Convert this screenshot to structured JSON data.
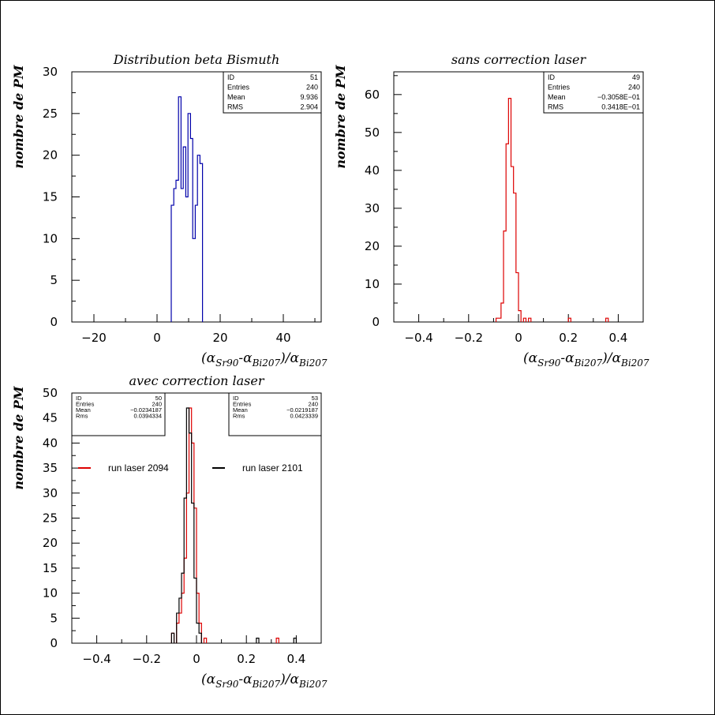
{
  "x_axis_label": {
    "open": "(α",
    "sub1": "Sr90",
    "mid": "-α",
    "sub2": "Bi207",
    "close": ")/α",
    "sub3": "Bi207"
  },
  "chart_data": [
    {
      "id": "bismuth",
      "type": "histogram",
      "title": "Distribution beta Bismuth",
      "ylabel": "nombre de PM",
      "xlim": [
        -27,
        52
      ],
      "ylim": [
        0,
        30
      ],
      "xticks": [
        -20,
        0,
        20,
        40
      ],
      "yticks": [
        0,
        5,
        10,
        15,
        20,
        25,
        30
      ],
      "xtick_labels": [
        "−20",
        "0",
        "20",
        "40"
      ],
      "series": [
        {
          "color": "#0000aa",
          "bins": [
            [
              4.5,
              5.3,
              14
            ],
            [
              5.3,
              6.0,
              16
            ],
            [
              6.0,
              6.8,
              17
            ],
            [
              6.8,
              7.6,
              27
            ],
            [
              7.6,
              8.3,
              16
            ],
            [
              8.3,
              9.1,
              21
            ],
            [
              9.1,
              9.8,
              15
            ],
            [
              9.8,
              10.6,
              25
            ],
            [
              10.6,
              11.3,
              22
            ],
            [
              11.3,
              12.1,
              10
            ],
            [
              12.1,
              12.8,
              14
            ],
            [
              12.8,
              13.6,
              20
            ],
            [
              13.6,
              14.4,
              19
            ]
          ]
        }
      ],
      "stats": [
        {
          "rows": [
            [
              "ID",
              "51"
            ],
            [
              "Entries",
              "240"
            ],
            [
              "Mean",
              "9.936"
            ],
            [
              "RMS",
              "2.904"
            ]
          ]
        }
      ]
    },
    {
      "id": "sans",
      "type": "histogram",
      "title": "sans correction laser",
      "ylabel": "nombre de PM",
      "xlim": [
        -0.5,
        0.5
      ],
      "ylim": [
        0,
        66
      ],
      "xticks": [
        -0.4,
        -0.2,
        0,
        0.2,
        0.4
      ],
      "yticks": [
        0,
        10,
        20,
        30,
        40,
        50,
        60
      ],
      "xtick_labels": [
        "−0.4",
        "−0.2",
        "0",
        "0.2",
        "0.4"
      ],
      "series": [
        {
          "color": "#dd0000",
          "bins": [
            [
              -0.09,
              -0.08,
              1
            ],
            [
              -0.08,
              -0.07,
              1
            ],
            [
              -0.07,
              -0.06,
              5
            ],
            [
              -0.06,
              -0.05,
              24
            ],
            [
              -0.05,
              -0.04,
              47
            ],
            [
              -0.04,
              -0.03,
              59
            ],
            [
              -0.03,
              -0.02,
              41
            ],
            [
              -0.02,
              -0.01,
              34
            ],
            [
              -0.01,
              0.0,
              13
            ],
            [
              0.0,
              0.01,
              3
            ],
            [
              0.02,
              0.03,
              1
            ],
            [
              0.04,
              0.05,
              1
            ],
            [
              0.2,
              0.21,
              1
            ],
            [
              0.35,
              0.36,
              1
            ]
          ]
        }
      ],
      "stats": [
        {
          "rows": [
            [
              "ID",
              "49"
            ],
            [
              "Entries",
              "240"
            ],
            [
              "Mean",
              "−0.3058E−01"
            ],
            [
              "RMS",
              "0.3418E−01"
            ]
          ]
        }
      ]
    },
    {
      "id": "avec",
      "type": "histogram",
      "title": "avec correction laser",
      "ylabel": "nombre de PM",
      "xlim": [
        -0.5,
        0.5
      ],
      "ylim": [
        0,
        50
      ],
      "xticks": [
        -0.4,
        -0.2,
        0,
        0.2,
        0.4
      ],
      "yticks": [
        0,
        5,
        10,
        15,
        20,
        25,
        30,
        35,
        40,
        45,
        50
      ],
      "xtick_labels": [
        "−0.4",
        "−0.2",
        "0",
        "0.2",
        "0.4"
      ],
      "series": [
        {
          "name": "run laser 2094",
          "color": "#dd0000",
          "bins": [
            [
              -0.1,
              -0.09,
              2
            ],
            [
              -0.08,
              -0.07,
              4
            ],
            [
              -0.07,
              -0.06,
              6
            ],
            [
              -0.06,
              -0.05,
              10
            ],
            [
              -0.05,
              -0.04,
              17
            ],
            [
              -0.04,
              -0.03,
              30
            ],
            [
              -0.03,
              -0.02,
              47
            ],
            [
              -0.02,
              -0.01,
              40
            ],
            [
              -0.01,
              0.0,
              27
            ],
            [
              0.0,
              0.01,
              10
            ],
            [
              0.01,
              0.02,
              4
            ],
            [
              0.03,
              0.04,
              1
            ],
            [
              0.32,
              0.33,
              1
            ]
          ]
        },
        {
          "name": "run laser 2101",
          "color": "#000000",
          "bins": [
            [
              -0.1,
              -0.09,
              2
            ],
            [
              -0.08,
              -0.07,
              6
            ],
            [
              -0.07,
              -0.06,
              9
            ],
            [
              -0.06,
              -0.05,
              14
            ],
            [
              -0.05,
              -0.04,
              29
            ],
            [
              -0.04,
              -0.03,
              47
            ],
            [
              -0.03,
              -0.02,
              42
            ],
            [
              -0.02,
              -0.01,
              28
            ],
            [
              -0.01,
              0.0,
              13
            ],
            [
              0.0,
              0.01,
              4
            ],
            [
              0.01,
              0.02,
              2
            ],
            [
              0.24,
              0.25,
              1
            ],
            [
              0.39,
              0.4,
              1
            ]
          ]
        }
      ],
      "stats": [
        {
          "rows": [
            [
              "ID",
              "50"
            ],
            [
              "Entries",
              "240"
            ],
            [
              "Mean",
              "−0.0234187"
            ],
            [
              "Rms",
              "0.0394334"
            ]
          ]
        },
        {
          "rows": [
            [
              "ID",
              "53"
            ],
            [
              "Entries",
              "240"
            ],
            [
              "Mean",
              "−0.0219187"
            ],
            [
              "Rms",
              "0.0423339"
            ]
          ]
        }
      ],
      "legend": [
        {
          "label": "run laser 2094",
          "color": "#dd0000"
        },
        {
          "label": "run laser 2101",
          "color": "#000000"
        }
      ]
    }
  ]
}
